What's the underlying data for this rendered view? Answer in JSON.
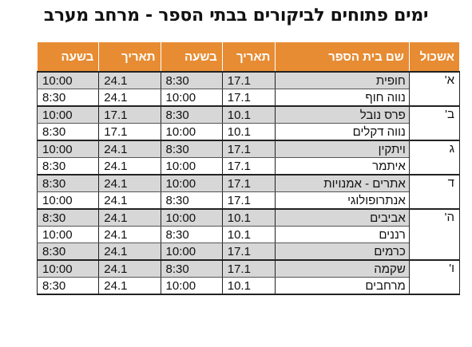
{
  "title": "ימים פתוחים לביקורים בבתי הספר - מרחב מערב",
  "headers": [
    "אשכול",
    "שם בית הספר",
    "תאריך",
    "בשעה",
    "תאריך",
    "בשעה"
  ],
  "clusters": [
    {
      "label": "א'",
      "rows": [
        {
          "school": "חופית",
          "date1": "17.1",
          "time1": "8:30",
          "date2": "24.1",
          "time2": "10:00",
          "shade": true
        },
        {
          "school": "נווה חוף",
          "date1": "17.1",
          "time1": "10:00",
          "date2": "24.1",
          "time2": "8:30",
          "shade": false
        }
      ]
    },
    {
      "label": "ב'",
      "rows": [
        {
          "school": "פרס נובל",
          "date1": "10.1",
          "time1": "8:30",
          "date2": "17.1",
          "time2": "10:00",
          "shade": true
        },
        {
          "school": "נווה דקלים",
          "date1": "10.1",
          "time1": "10:00",
          "date2": "17.1",
          "time2": "8:30",
          "shade": false
        }
      ]
    },
    {
      "label": "ג",
      "rows": [
        {
          "school": "ויתקין",
          "date1": "17.1",
          "time1": "8:30",
          "date2": "24.1",
          "time2": "10:00",
          "shade": true
        },
        {
          "school": "איתמר",
          "date1": "17.1",
          "time1": "10:00",
          "date2": "24.1",
          "time2": "8:30",
          "shade": false
        }
      ]
    },
    {
      "label": "ד",
      "rows": [
        {
          "school": "אתרים - אמנויות",
          "date1": "17.1",
          "time1": "10:00",
          "date2": "24.1",
          "time2": "8:30",
          "shade": true
        },
        {
          "school": "אנתרופולוגי",
          "date1": "17.1",
          "time1": "8:30",
          "date2": "24.1",
          "time2": "10:00",
          "shade": false
        }
      ]
    },
    {
      "label": "ה'",
      "rows": [
        {
          "school": "אביבים",
          "date1": "10.1",
          "time1": "10:00",
          "date2": "24.1",
          "time2": "8:30",
          "shade": true
        },
        {
          "school": "רננים",
          "date1": "10.1",
          "time1": "8:30",
          "date2": "24.1",
          "time2": "10:00",
          "shade": false
        },
        {
          "school": "כרמים",
          "date1": "17.1",
          "time1": "10:00",
          "date2": "24.1",
          "time2": "8:30",
          "shade": true
        }
      ]
    },
    {
      "label": "ו'",
      "rows": [
        {
          "school": "שקמה",
          "date1": "17.1",
          "time1": "8:30",
          "date2": "24.1",
          "time2": "10:00",
          "shade": true
        },
        {
          "school": "מרחבים",
          "date1": "10.1",
          "time1": "10:00",
          "date2": "24.1",
          "time2": "8:30",
          "shade": false
        }
      ]
    }
  ],
  "colors": {
    "header_bg": "#e78c33",
    "row_shade": "#d7d7d7"
  }
}
